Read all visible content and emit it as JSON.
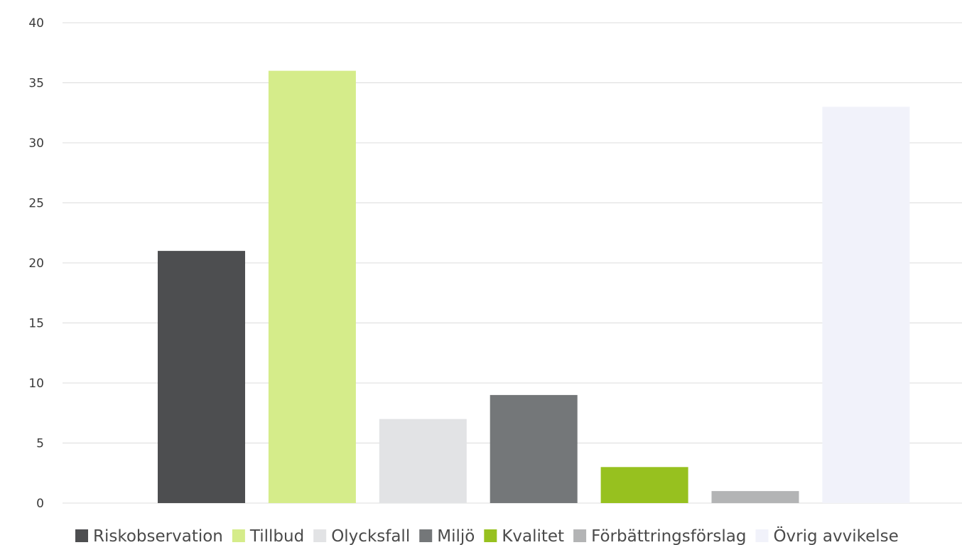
{
  "chart_data": {
    "type": "bar",
    "title": "",
    "xlabel": "",
    "ylabel": "",
    "ylim": [
      0,
      40
    ],
    "yticks": [
      0,
      5,
      10,
      15,
      20,
      25,
      30,
      35,
      40
    ],
    "grid": true,
    "legend_position": "bottom",
    "series": [
      {
        "name": "Riskobservation",
        "value": 21,
        "color": "#4d4e50"
      },
      {
        "name": "Tillbud",
        "value": 36,
        "color": "#d5ec8a"
      },
      {
        "name": "Olycksfall",
        "value": 7,
        "color": "#e2e3e5"
      },
      {
        "name": "Miljö",
        "value": 9,
        "color": "#747779"
      },
      {
        "name": "Kvalitet",
        "value": 3,
        "color": "#97c11f"
      },
      {
        "name": "Förbättringsförslag",
        "value": 1,
        "color": "#b3b4b5"
      },
      {
        "name": "Övrig avvikelse",
        "value": 33,
        "color": "#f1f2fa"
      }
    ]
  }
}
